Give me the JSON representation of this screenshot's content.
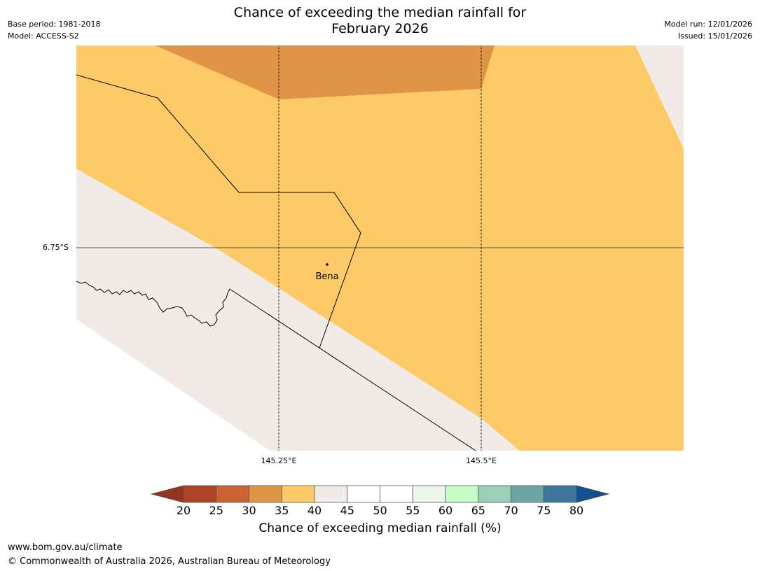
{
  "header": {
    "title_line1": "Chance of exceeding the median rainfall for",
    "title_line2": "February 2026",
    "base_period": "Base period: 1981-2018",
    "model": "Model: ACCESS-S2",
    "model_run": "Model run: 12/01/2026",
    "issued": "Issued: 15/01/2026"
  },
  "map": {
    "latitude_label": "6.75°S",
    "longitude_labels": [
      "145.25°E",
      "145.5°E"
    ],
    "places": [
      {
        "name": "Bena"
      }
    ],
    "regions": [
      {
        "name": "30-35 %",
        "color": "#e09448"
      },
      {
        "name": "35-40 %",
        "color": "#fdca67"
      },
      {
        "name": "40-45 %",
        "color": "#f0ebe6"
      }
    ]
  },
  "colorbar": {
    "label": "Chance of exceeding median rainfall (%)",
    "ticks": [
      "20",
      "25",
      "30",
      "35",
      "40",
      "45",
      "50",
      "55",
      "60",
      "65",
      "70",
      "75",
      "80"
    ],
    "under_color": "#953321",
    "over_color": "#115192",
    "colors": [
      "#ad4426",
      "#cb6231",
      "#e09448",
      "#fdca67",
      "#f0ebe6",
      "#ffffff",
      "#ffffff",
      "#ebf7eb",
      "#c6fcc6",
      "#9ccfb7",
      "#6da5a5",
      "#3f779c"
    ]
  },
  "footer": {
    "url": "www.bom.gov.au/climate",
    "copyright": "© Commonwealth of Australia 2026, Australian Bureau of Meteorology"
  }
}
